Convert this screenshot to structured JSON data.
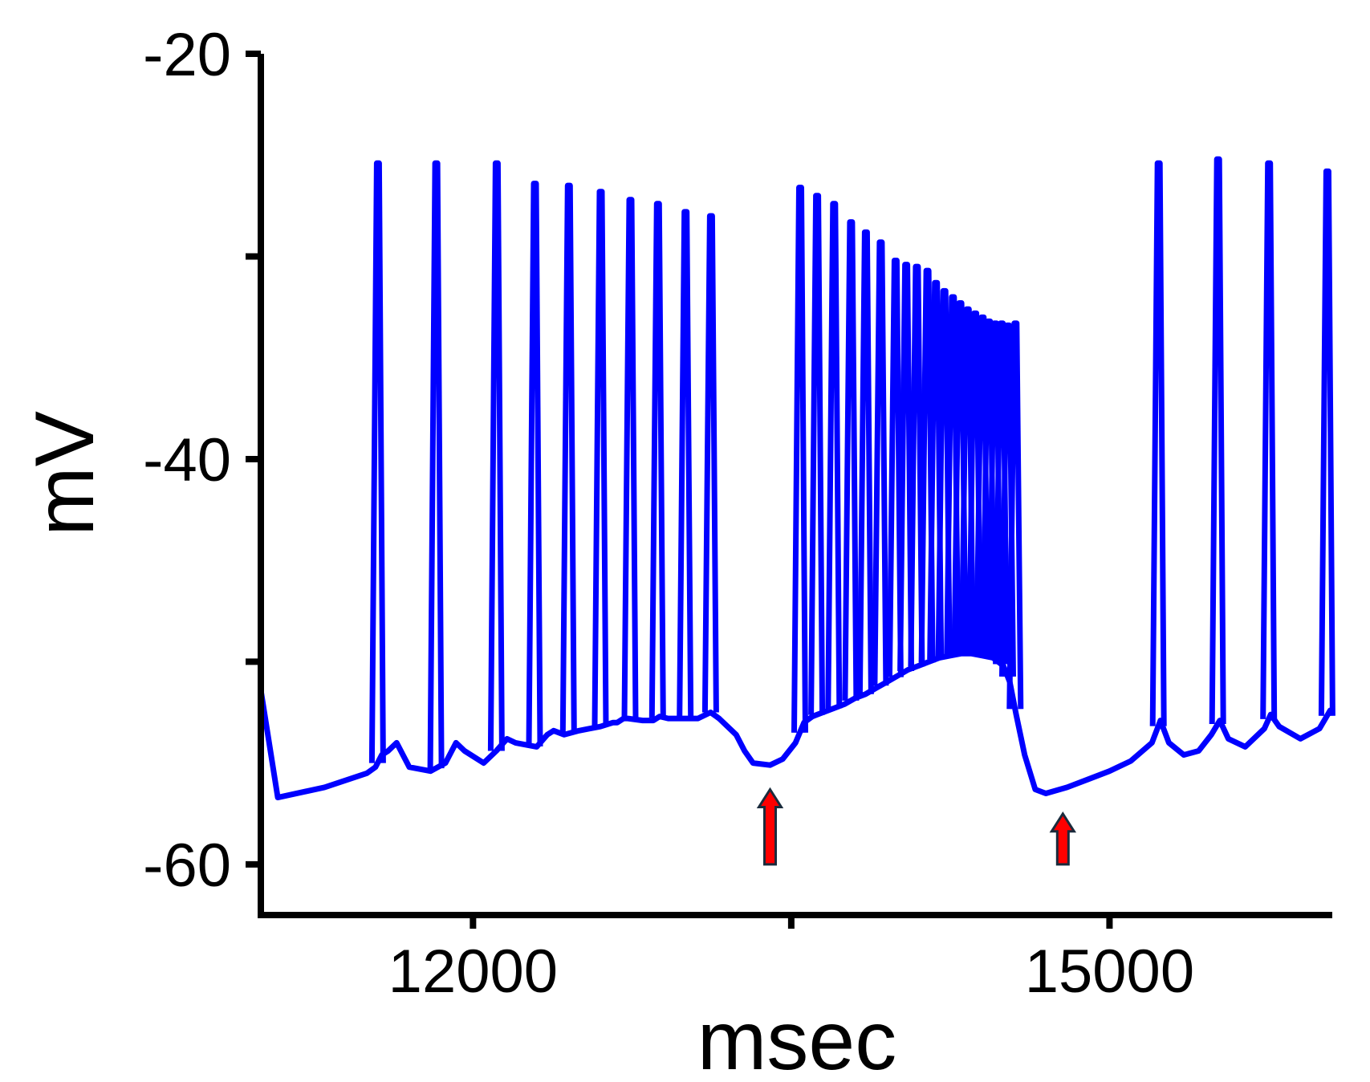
{
  "chart_data": {
    "type": "line",
    "xlabel": "msec",
    "ylabel": "mV",
    "xlim": [
      11000,
      16050
    ],
    "ylim": [
      -62.5,
      -20
    ],
    "x_ticks": [
      {
        "value": 12000,
        "label": "12000"
      },
      {
        "value": 13500,
        "label": ""
      },
      {
        "value": 15000,
        "label": "15000"
      }
    ],
    "y_ticks": [
      {
        "value": -20,
        "label": "-20"
      },
      {
        "value": -30,
        "label": ""
      },
      {
        "value": -40,
        "label": "-40"
      },
      {
        "value": -50,
        "label": ""
      },
      {
        "value": -60,
        "label": "-60"
      }
    ],
    "grid": false,
    "legend": "none",
    "colors": {
      "trace": "#0000ff",
      "arrow_fill": "#ff0000",
      "arrow_outline": "#1a2b3c",
      "axis": "#000000"
    },
    "series": [
      {
        "color": "#0000ff",
        "baseline": [
          [
            11000,
            -51.4
          ],
          [
            11080,
            -56.7
          ],
          [
            11300,
            -56.2
          ],
          [
            11500,
            -55.5
          ],
          [
            11540,
            -55.2
          ],
          [
            11570,
            -54.6
          ],
          [
            11600,
            -54.4
          ],
          [
            11640,
            -54.0
          ],
          [
            11700,
            -55.2
          ],
          [
            11800,
            -55.4
          ],
          [
            11870,
            -55.0
          ],
          [
            11920,
            -54.0
          ],
          [
            11960,
            -54.4
          ],
          [
            12050,
            -55.0
          ],
          [
            12110,
            -54.4
          ],
          [
            12160,
            -53.8
          ],
          [
            12200,
            -54.0
          ],
          [
            12300,
            -54.2
          ],
          [
            12350,
            -53.6
          ],
          [
            12380,
            -53.4
          ],
          [
            12430,
            -53.6
          ],
          [
            12500,
            -53.4
          ],
          [
            12550,
            -53.3
          ],
          [
            12600,
            -53.2
          ],
          [
            12660,
            -53.0
          ],
          [
            12680,
            -53.0
          ],
          [
            12710,
            -52.8
          ],
          [
            12730,
            -52.8
          ],
          [
            12800,
            -52.9
          ],
          [
            12850,
            -52.9
          ],
          [
            12880,
            -52.7
          ],
          [
            12920,
            -52.8
          ],
          [
            12940,
            -52.8
          ],
          [
            13000,
            -52.8
          ],
          [
            13060,
            -52.8
          ],
          [
            13120,
            -52.5
          ],
          [
            13160,
            -52.8
          ],
          [
            13240,
            -53.6
          ],
          [
            13280,
            -54.4
          ],
          [
            13320,
            -55.0
          ],
          [
            13400,
            -55.1
          ],
          [
            13460,
            -54.8
          ],
          [
            13520,
            -54.0
          ],
          [
            13560,
            -53.0
          ],
          [
            13600,
            -52.7
          ],
          [
            13650,
            -52.5
          ],
          [
            13700,
            -52.3
          ],
          [
            13750,
            -52.1
          ],
          [
            13800,
            -51.8
          ],
          [
            13850,
            -51.6
          ],
          [
            13900,
            -51.3
          ],
          [
            13950,
            -51.0
          ],
          [
            14000,
            -50.7
          ],
          [
            14050,
            -50.4
          ],
          [
            14100,
            -50.2
          ],
          [
            14150,
            -50.0
          ],
          [
            14200,
            -49.8
          ],
          [
            14250,
            -49.7
          ],
          [
            14300,
            -49.6
          ],
          [
            14350,
            -49.6
          ],
          [
            14400,
            -49.7
          ],
          [
            14450,
            -49.8
          ],
          [
            14500,
            -50.2
          ],
          [
            14530,
            -51.0
          ],
          [
            14560,
            -52.6
          ],
          [
            14600,
            -54.6
          ],
          [
            14650,
            -56.3
          ],
          [
            14700,
            -56.5
          ],
          [
            14800,
            -56.2
          ],
          [
            14900,
            -55.8
          ],
          [
            15000,
            -55.4
          ],
          [
            15100,
            -54.9
          ],
          [
            15200,
            -54.0
          ],
          [
            15240,
            -52.9
          ],
          [
            15280,
            -54.0
          ],
          [
            15350,
            -54.6
          ],
          [
            15420,
            -54.4
          ],
          [
            15480,
            -53.6
          ],
          [
            15520,
            -52.9
          ],
          [
            15560,
            -53.8
          ],
          [
            15640,
            -54.2
          ],
          [
            15730,
            -53.3
          ],
          [
            15760,
            -52.6
          ],
          [
            15800,
            -53.2
          ],
          [
            15900,
            -53.8
          ],
          [
            15990,
            -53.3
          ],
          [
            16040,
            -52.4
          ]
        ],
        "spikes": [
          {
            "x": 11550,
            "peak": -25.4
          },
          {
            "x": 11825,
            "peak": -25.4
          },
          {
            "x": 12110,
            "peak": -25.4
          },
          {
            "x": 12290,
            "peak": -26.4
          },
          {
            "x": 12450,
            "peak": -26.5
          },
          {
            "x": 12600,
            "peak": -26.8
          },
          {
            "x": 12740,
            "peak": -27.2
          },
          {
            "x": 12870,
            "peak": -27.4
          },
          {
            "x": 13000,
            "peak": -27.8
          },
          {
            "x": 13120,
            "peak": -28.0
          },
          {
            "x": 13540,
            "peak": -26.6
          },
          {
            "x": 13620,
            "peak": -27.0
          },
          {
            "x": 13700,
            "peak": -27.4
          },
          {
            "x": 13780,
            "peak": -28.3
          },
          {
            "x": 13850,
            "peak": -28.8
          },
          {
            "x": 13920,
            "peak": -29.3
          },
          {
            "x": 13990,
            "peak": -30.2
          },
          {
            "x": 14040,
            "peak": -30.4
          },
          {
            "x": 14090,
            "peak": -30.5
          },
          {
            "x": 14140,
            "peak": -30.7
          },
          {
            "x": 14180,
            "peak": -31.3
          },
          {
            "x": 14220,
            "peak": -31.7
          },
          {
            "x": 14260,
            "peak": -32.0
          },
          {
            "x": 14295,
            "peak": -32.3
          },
          {
            "x": 14330,
            "peak": -32.6
          },
          {
            "x": 14365,
            "peak": -32.8
          },
          {
            "x": 14400,
            "peak": -33.0
          },
          {
            "x": 14430,
            "peak": -33.2
          },
          {
            "x": 14460,
            "peak": -33.3
          },
          {
            "x": 14490,
            "peak": -33.3
          },
          {
            "x": 14520,
            "peak": -33.4
          },
          {
            "x": 14555,
            "peak": -33.3
          },
          {
            "x": 15230,
            "peak": -25.4
          },
          {
            "x": 15510,
            "peak": -25.2
          },
          {
            "x": 15750,
            "peak": -25.4
          },
          {
            "x": 16025,
            "peak": -25.8
          }
        ]
      }
    ],
    "annotations": [
      {
        "kind": "arrow-up",
        "x": 13400,
        "y_tip": -56.3,
        "y_tail": -60.0
      },
      {
        "kind": "arrow-up",
        "x": 14780,
        "y_tip": -57.5,
        "y_tail": -60.0
      }
    ]
  }
}
